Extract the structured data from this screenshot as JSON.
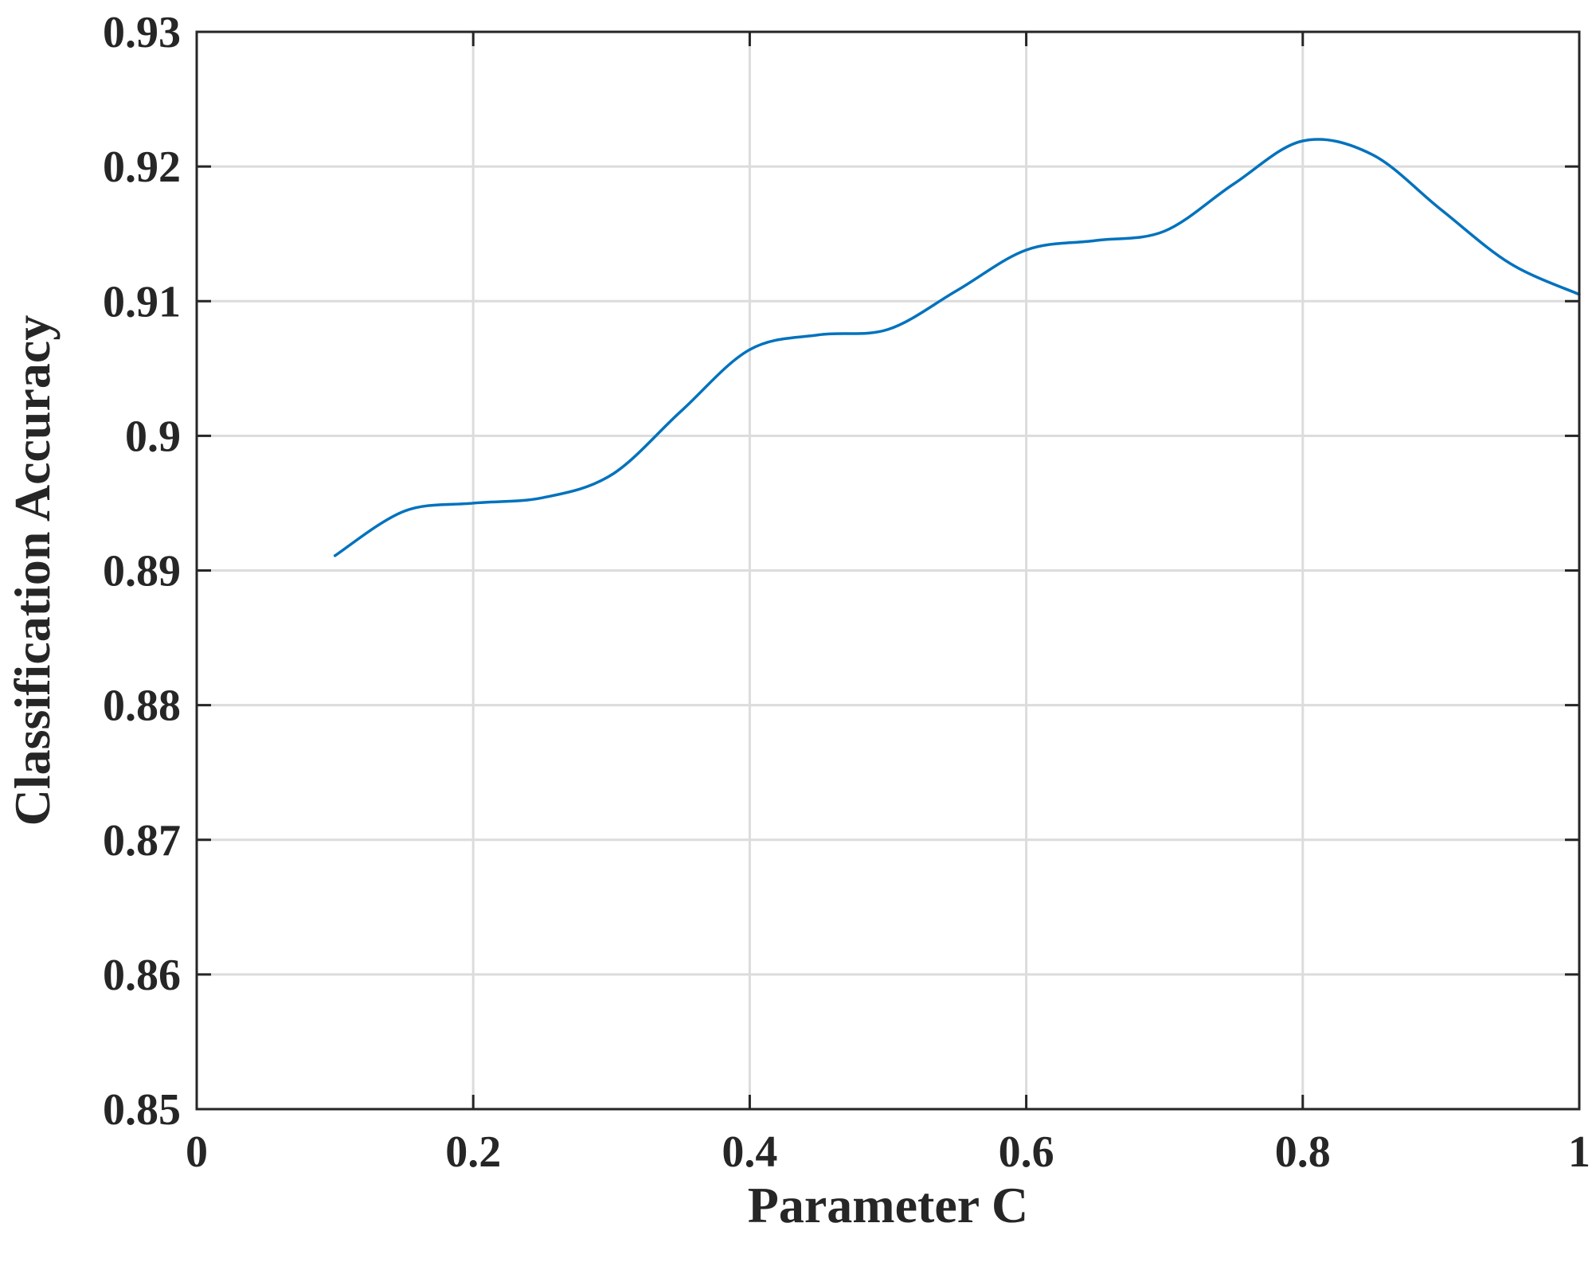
{
  "chart_data": {
    "type": "line",
    "title": "",
    "xlabel": "Parameter C",
    "ylabel": "Classification Accuracy",
    "xlim": [
      0,
      1
    ],
    "ylim": [
      0.85,
      0.93
    ],
    "x_ticks": [
      0,
      0.2,
      0.4,
      0.6,
      0.8,
      1
    ],
    "x_tick_labels": [
      "0",
      "0.2",
      "0.4",
      "0.6",
      "0.8",
      "1"
    ],
    "y_ticks": [
      0.85,
      0.86,
      0.87,
      0.88,
      0.89,
      0.9,
      0.91,
      0.92,
      0.93
    ],
    "y_tick_labels": [
      "0.85",
      "0.86",
      "0.87",
      "0.88",
      "0.89",
      "0.9",
      "0.91",
      "0.92",
      "0.93"
    ],
    "grid": true,
    "legend": "none",
    "series": [
      {
        "color": "#0072BD",
        "x": [
          0.1,
          0.15,
          0.2,
          0.25,
          0.3,
          0.35,
          0.4,
          0.45,
          0.5,
          0.55,
          0.6,
          0.65,
          0.7,
          0.75,
          0.8,
          0.85,
          0.9,
          0.95,
          1.0
        ],
        "y": [
          0.8911,
          0.8944,
          0.895,
          0.8954,
          0.8971,
          0.9018,
          0.9064,
          0.9075,
          0.9079,
          0.9108,
          0.9138,
          0.9145,
          0.9152,
          0.9187,
          0.9219,
          0.9209,
          0.9168,
          0.9128,
          0.9105
        ]
      }
    ]
  }
}
